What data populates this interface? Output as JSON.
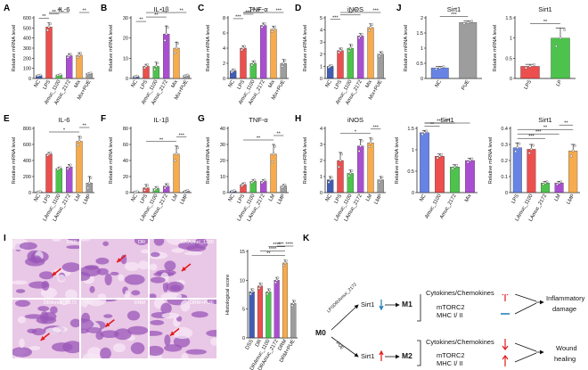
{
  "panel_labels": [
    "A",
    "B",
    "C",
    "D",
    "J",
    "E",
    "F",
    "G",
    "H",
    "I",
    "K"
  ],
  "colors": {
    "navy": "#1f3fa6",
    "blue": "#4c6fe0",
    "red": "#e8302f",
    "green": "#2eb82e",
    "purple": "#9b2fc9",
    "orange": "#f39c2f",
    "gray": "#8c8c8c",
    "ltred": "#f4a6a6"
  },
  "chart_data": [
    {
      "id": "A",
      "type": "bar",
      "title": "IL-6",
      "ylabel": "Relative mRNA level",
      "ylim": [
        0,
        600
      ],
      "yticks": [
        0,
        100,
        200,
        300,
        400,
        500,
        600
      ],
      "categories": [
        "NC",
        "LPS",
        "Amuc_1100",
        "Amuc_2172",
        "Mix",
        "Mix+PUE"
      ],
      "values": [
        30,
        510,
        35,
        225,
        230,
        50
      ],
      "errors": [
        5,
        40,
        5,
        20,
        25,
        5
      ],
      "colors": [
        "#1f3fa6",
        "#e8302f",
        "#2eb82e",
        "#9b2fc9",
        "#f39c2f",
        "#8c8c8c"
      ],
      "sig": [
        {
          "a": 0,
          "b": 1,
          "t": "**"
        },
        {
          "a": 1,
          "b": 2,
          "t": "**"
        },
        {
          "a": 1,
          "b": 3,
          "t": "**"
        },
        {
          "a": 4,
          "b": 5,
          "t": "**"
        }
      ]
    },
    {
      "id": "B",
      "type": "bar",
      "title": "IL-1β",
      "ylabel": "Relative mRNA level",
      "ylim": [
        0,
        30
      ],
      "yticks": [
        0,
        10,
        20,
        30
      ],
      "categories": [
        "NC",
        "LPS",
        "Amuc_1100",
        "Amuc_2172",
        "Mix",
        "Mix+PUE"
      ],
      "values": [
        1,
        6,
        6,
        22,
        15,
        1.5
      ],
      "errors": [
        0.3,
        1,
        2,
        4,
        3,
        0.3
      ],
      "colors": [
        "#1f3fa6",
        "#e8302f",
        "#2eb82e",
        "#9b2fc9",
        "#f39c2f",
        "#8c8c8c"
      ],
      "sig": [
        {
          "a": 0,
          "b": 1,
          "t": "**"
        },
        {
          "a": 1,
          "b": 3,
          "t": "**"
        },
        {
          "a": 1,
          "b": 4,
          "t": "*"
        },
        {
          "a": 4,
          "b": 5,
          "t": "**"
        }
      ]
    },
    {
      "id": "C",
      "type": "bar",
      "title": "TNF-α",
      "ylabel": "Relative mRNA level",
      "ylim": [
        0,
        8
      ],
      "yticks": [
        0,
        2,
        4,
        6,
        8
      ],
      "categories": [
        "NC",
        "LPS",
        "Amuc_1100",
        "Amuc_2172",
        "Mix",
        "Mix+PUE"
      ],
      "values": [
        1,
        4,
        2,
        7,
        6.5,
        2
      ],
      "errors": [
        0.2,
        0.3,
        0.3,
        0.3,
        0.4,
        0.5
      ],
      "colors": [
        "#1f3fa6",
        "#e8302f",
        "#2eb82e",
        "#9b2fc9",
        "#f39c2f",
        "#8c8c8c"
      ],
      "sig": [
        {
          "a": 0,
          "b": 1,
          "t": "***"
        },
        {
          "a": 1,
          "b": 2,
          "t": "***"
        },
        {
          "a": 1,
          "b": 3,
          "t": "**"
        },
        {
          "a": 1,
          "b": 4,
          "t": "**"
        },
        {
          "a": 4,
          "b": 5,
          "t": "***"
        }
      ]
    },
    {
      "id": "D",
      "type": "bar",
      "title": "iNOS",
      "ylabel": "Relative mRNA level",
      "ylim": [
        0,
        5
      ],
      "yticks": [
        0,
        1,
        2,
        3,
        4,
        5
      ],
      "categories": [
        "NC",
        "LPS",
        "Amuc_1100",
        "Amuc_2172",
        "Mix",
        "Mix+PUE"
      ],
      "values": [
        1,
        2.3,
        2.5,
        3.5,
        4.2,
        2
      ],
      "errors": [
        0.1,
        0.2,
        0.3,
        0.2,
        0.3,
        0.2
      ],
      "colors": [
        "#1f3fa6",
        "#e8302f",
        "#2eb82e",
        "#9b2fc9",
        "#f39c2f",
        "#8c8c8c"
      ],
      "sig": [
        {
          "a": 0,
          "b": 1,
          "t": "***"
        },
        {
          "a": 1,
          "b": 3,
          "t": "**"
        },
        {
          "a": 1,
          "b": 4,
          "t": "**"
        },
        {
          "a": 4,
          "b": 5,
          "t": "***"
        }
      ]
    },
    {
      "id": "J1",
      "type": "bar",
      "title": "Sirt1",
      "ylabel": "Relative mRNA level",
      "ylim": [
        0,
        2.0
      ],
      "yticks": [
        0,
        0.5,
        1.0,
        1.5,
        2.0
      ],
      "categories": [
        "NC",
        "PUE"
      ],
      "values": [
        0.35,
        1.85
      ],
      "errors": [
        0.05,
        0.05
      ],
      "colors": [
        "#4c6fe0",
        "#8c8c8c"
      ],
      "sig": [
        {
          "a": 0,
          "b": 1,
          "t": "***"
        }
      ]
    },
    {
      "id": "J2",
      "type": "bar",
      "title": "Sirt1",
      "ylabel": "Relative mRNA level",
      "ylim": [
        0,
        1.5
      ],
      "yticks": [
        0,
        0.5,
        1.0,
        1.5
      ],
      "categories": [
        "LPS",
        "LP"
      ],
      "values": [
        0.3,
        1.0
      ],
      "errors": [
        0.05,
        0.25
      ],
      "colors": [
        "#e8302f",
        "#2eb82e"
      ],
      "sig": [
        {
          "a": 0,
          "b": 1,
          "t": "**"
        }
      ]
    },
    {
      "id": "E",
      "type": "bar",
      "title": "IL-6",
      "ylabel": "Relative mRNA level",
      "ylim": [
        0,
        800
      ],
      "yticks": [
        0,
        200,
        400,
        600,
        800
      ],
      "categories": [
        "NC",
        "LPS",
        "LAmuc_1100",
        "LAmuc_2172",
        "LM",
        "LMP"
      ],
      "values": [
        10,
        480,
        300,
        320,
        640,
        120
      ],
      "errors": [
        3,
        20,
        15,
        30,
        60,
        80
      ],
      "colors": [
        "#1f3fa6",
        "#e8302f",
        "#2eb82e",
        "#9b2fc9",
        "#f39c2f",
        "#8c8c8c"
      ],
      "sig": [
        {
          "a": 1,
          "b": 4,
          "t": "*"
        },
        {
          "a": 4,
          "b": 5,
          "t": "**"
        }
      ]
    },
    {
      "id": "F",
      "type": "bar",
      "title": "IL-1β",
      "ylabel": "Relative mRNA level",
      "ylim": [
        0,
        80
      ],
      "yticks": [
        0,
        20,
        40,
        60,
        80
      ],
      "categories": [
        "NC",
        "LPS",
        "LAmuc_1100",
        "LAmuc_2172",
        "LM",
        "LMP"
      ],
      "values": [
        1,
        6,
        5,
        8,
        48,
        2
      ],
      "errors": [
        0.3,
        4,
        2,
        3,
        10,
        1
      ],
      "colors": [
        "#1f3fa6",
        "#e8302f",
        "#2eb82e",
        "#9b2fc9",
        "#f39c2f",
        "#8c8c8c"
      ],
      "sig": [
        {
          "a": 1,
          "b": 4,
          "t": "**"
        },
        {
          "a": 4,
          "b": 5,
          "t": "***"
        }
      ]
    },
    {
      "id": "G",
      "type": "bar",
      "title": "TNF-α",
      "ylabel": "Relative mRNA level",
      "ylim": [
        0,
        40
      ],
      "yticks": [
        0,
        10,
        20,
        30,
        40
      ],
      "categories": [
        "NC",
        "LPS",
        "LAmuc_1100",
        "LAmuc_2172",
        "LM",
        "LMP"
      ],
      "values": [
        1,
        5,
        7,
        7,
        24,
        4
      ],
      "errors": [
        0.3,
        1,
        1,
        1,
        6,
        1
      ],
      "colors": [
        "#1f3fa6",
        "#e8302f",
        "#2eb82e",
        "#9b2fc9",
        "#f39c2f",
        "#8c8c8c"
      ],
      "sig": [
        {
          "a": 1,
          "b": 4,
          "t": "**"
        },
        {
          "a": 4,
          "b": 5,
          "t": "**"
        }
      ]
    },
    {
      "id": "H",
      "type": "bar",
      "title": "iNOS",
      "ylabel": "Relative mRNA level",
      "ylim": [
        0,
        4
      ],
      "yticks": [
        0,
        1,
        2,
        3,
        4
      ],
      "categories": [
        "NC",
        "LPS",
        "LAmuc_1100",
        "LAmuc_2172",
        "LM",
        "LMP"
      ],
      "values": [
        0.8,
        2,
        1.2,
        2.9,
        3.1,
        0.8
      ],
      "errors": [
        0.2,
        0.5,
        0.2,
        0.4,
        0.3,
        0.2
      ],
      "colors": [
        "#1f3fa6",
        "#e8302f",
        "#2eb82e",
        "#9b2fc9",
        "#f39c2f",
        "#8c8c8c"
      ],
      "sig": [
        {
          "a": 1,
          "b": 4,
          "t": "*"
        },
        {
          "a": 4,
          "b": 5,
          "t": "***"
        }
      ]
    },
    {
      "id": "H2",
      "type": "bar",
      "title": "Sirt1",
      "ylabel": "Relative mRNA level",
      "ylim": [
        0,
        1.5
      ],
      "yticks": [
        0,
        0.5,
        1.0,
        1.5
      ],
      "categories": [
        "NC",
        "Amuc_1100",
        "Amuc_2172",
        "Mix"
      ],
      "values": [
        1.4,
        0.85,
        0.6,
        0.75
      ],
      "errors": [
        0.05,
        0.05,
        0.05,
        0.05
      ],
      "colors": [
        "#4c6fe0",
        "#e8302f",
        "#2eb82e",
        "#9b2fc9"
      ],
      "sig": [
        {
          "a": 0,
          "b": 1,
          "t": "**"
        },
        {
          "a": 0,
          "b": 2,
          "t": "***"
        },
        {
          "a": 0,
          "b": 3,
          "t": "***"
        }
      ]
    },
    {
      "id": "H3",
      "type": "bar",
      "title": "Sirt1",
      "ylabel": "Relative mRNA level",
      "ylim": [
        0,
        0.4
      ],
      "yticks": [
        0,
        0.1,
        0.2,
        0.3,
        0.4
      ],
      "categories": [
        "LPS",
        "LAmuc_1100",
        "LAmuc_2172",
        "LM",
        "LMP"
      ],
      "values": [
        0.28,
        0.27,
        0.06,
        0.06,
        0.26
      ],
      "errors": [
        0.03,
        0.03,
        0.01,
        0.01,
        0.04
      ],
      "colors": [
        "#4c6fe0",
        "#e8302f",
        "#2eb82e",
        "#9b2fc9",
        "#f39c2f"
      ],
      "sig": [
        {
          "a": 0,
          "b": 2,
          "t": "***"
        },
        {
          "a": 0,
          "b": 3,
          "t": "***"
        },
        {
          "a": 0,
          "b": 4,
          "t": "**"
        },
        {
          "a": 3,
          "b": 4,
          "t": "**"
        }
      ]
    },
    {
      "id": "I2",
      "type": "bar",
      "title": "",
      "ylabel": "Histological score",
      "ylim": [
        0,
        15
      ],
      "yticks": [
        0,
        5,
        10,
        15
      ],
      "categories": [
        "DSS",
        "DR",
        "DRAmuc_1100",
        "DRAmuc_2172",
        "DRM",
        "DRM+PUE"
      ],
      "values": [
        8,
        9,
        8,
        10,
        13,
        6
      ],
      "errors": [
        0.5,
        0.5,
        0.5,
        0.5,
        0.5,
        0.5
      ],
      "colors": [
        "#1f3fa6",
        "#e8302f",
        "#2eb82e",
        "#9b2fc9",
        "#f39c2f",
        "#8c8c8c"
      ],
      "sig": [
        {
          "a": 0,
          "b": 4,
          "t": "**"
        },
        {
          "a": 1,
          "b": 4,
          "t": "****"
        },
        {
          "a": 2,
          "b": 4,
          "t": "****"
        },
        {
          "a": 3,
          "b": 4,
          "t": "***"
        },
        {
          "a": 4,
          "b": 5,
          "t": "****"
        }
      ]
    }
  ],
  "histology": {
    "tiles": [
      "DSS",
      "DR",
      "DRAmuc_1100",
      "DRAmuc_2172",
      "DRM",
      "DRM+PUE"
    ]
  },
  "schema": {
    "m0": "M0",
    "m1": "M1",
    "m2": "M2",
    "sirt1": "Sirt1",
    "top_branch": "LPSDR/Amuc_2172",
    "bottom_branch": "PUE",
    "cytokines": "Cytokines/Chemokines",
    "mtorc2": "mTORC2",
    "mhc": "MHC I/ II",
    "inflam": "Inflammatory",
    "damage": "damage",
    "wound": "Wound",
    "healing": "healing"
  }
}
